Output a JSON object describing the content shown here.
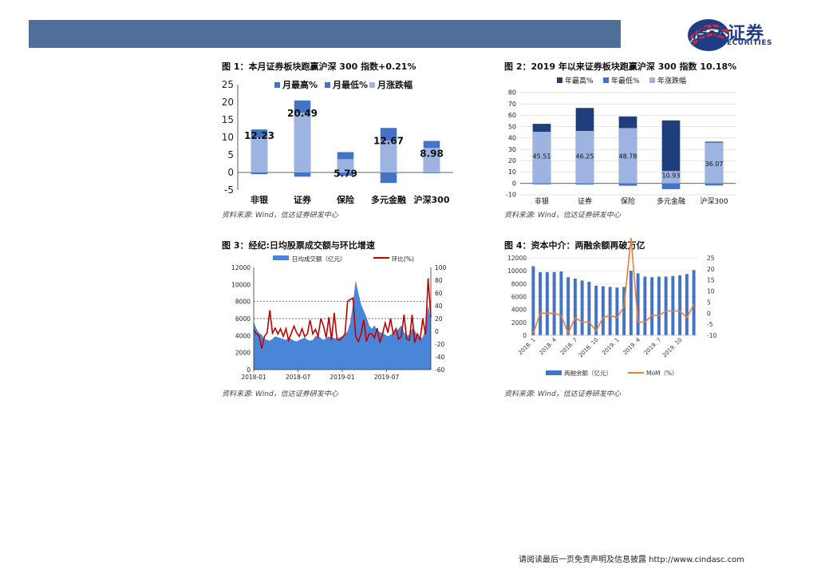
{
  "footer": {
    "disclaimer": "请阅读最后一页免责声明及信息披露 http://www.cindasc.com"
  },
  "logo": {
    "cn": "信达证券",
    "en": "CINDA SECURITIES"
  },
  "source_text": "资料来源: Wind，信达证券研发中心",
  "colors": {
    "header": "#4f6e99",
    "light_blue": "#9db3e0",
    "mid_blue": "#4472c4",
    "dark_blue": "#1f3f7a",
    "red": "#c00000",
    "orange": "#ed7d31"
  },
  "chart1": {
    "title": "图 1：本月证券板块跑赢沪深 300 指数+0.21%"
  },
  "chart2": {
    "title": "图 2：2019 年以来证券板块跑赢沪深 300 指数 10.18%"
  },
  "chart3": {
    "title": "图 3：经纪:日均股票成交额与环比增速"
  },
  "chart4": {
    "title": "图 4：资本中介：两融余额再破万亿"
  },
  "chart_data": [
    {
      "type": "bar",
      "categories": [
        "非银",
        "证券",
        "保险",
        "多元金融",
        "沪深300"
      ],
      "series": [
        {
          "name": "月最高%",
          "values": [
            12.23,
            20.49,
            5.79,
            12.67,
            8.98
          ]
        },
        {
          "name": "月最低%",
          "values": [
            -0.5,
            -1.2,
            -0.9,
            -3.0,
            -0.2
          ]
        },
        {
          "name": "月涨跌幅",
          "values": [
            10.0,
            17.0,
            3.8,
            9.0,
            7.0
          ]
        }
      ],
      "data_labels": [
        "12.23",
        "20.49",
        "5.79",
        "12.67",
        "8.98"
      ],
      "yticks": [
        "25",
        "20",
        "15",
        "10",
        "5",
        "0",
        "-5"
      ],
      "ylim": [
        -5,
        25
      ],
      "legend_position": "top"
    },
    {
      "type": "bar",
      "categories": [
        "非银",
        "证券",
        "保险",
        "多元金融",
        "沪深300"
      ],
      "series": [
        {
          "name": "年最高%",
          "values": [
            52.5,
            66.5,
            59.0,
            55.5,
            36.8
          ]
        },
        {
          "name": "年最低%",
          "values": [
            -0.8,
            -1.0,
            -2.0,
            -5.0,
            -1.8
          ]
        },
        {
          "name": "年涨跌幅",
          "values": [
            45.51,
            46.25,
            48.78,
            10.93,
            36.07
          ]
        }
      ],
      "data_labels": [
        "45.51",
        "46.25",
        "48.78",
        "10.93",
        "36.07"
      ],
      "yticks": [
        "80",
        "70",
        "60",
        "50",
        "40",
        "30",
        "20",
        "10",
        "0",
        "-10"
      ],
      "ylim": [
        -10,
        80
      ],
      "legend_position": "top"
    },
    {
      "type": "area",
      "series": [
        {
          "name": "日均成交额（亿元）",
          "axis": "left",
          "values": [
            5600,
            4800,
            4300,
            4100,
            3600,
            3500,
            3400,
            3600,
            3900,
            3800,
            3700,
            3600,
            3500,
            3700,
            3600,
            3400,
            3300,
            3500,
            3600,
            3800,
            3500,
            3400,
            3500,
            3900,
            4000,
            3700,
            3500,
            3700,
            3900,
            3800,
            3700,
            3600,
            3800,
            3900,
            4200,
            4500,
            5600,
            7800,
            10500,
            9000,
            7700,
            6900,
            6200,
            5200,
            4800,
            5200,
            4600,
            4400,
            4300,
            4100,
            3900,
            4100,
            4300,
            4500,
            4800,
            5200,
            4400,
            4000,
            4100,
            4800,
            4600,
            3900,
            3600,
            3800,
            4900,
            7600,
            5800
          ]
        },
        {
          "name": "环比(%)",
          "axis": "right",
          "values": [
            2,
            -4,
            -7,
            -27,
            -8,
            -2,
            33,
            -3,
            5,
            -4,
            4,
            -8,
            4,
            -14,
            -3,
            8,
            -2,
            -8,
            4,
            -8,
            -4,
            18,
            -4,
            3,
            -8,
            20,
            8,
            -10,
            22,
            -14,
            29,
            -12,
            -14,
            -10,
            -4,
            47,
            50,
            52,
            -8,
            -16,
            -4,
            18,
            -16,
            -4,
            -4,
            -10,
            5,
            -18,
            -4,
            13,
            -2,
            20,
            -4,
            4,
            -12,
            -8,
            26,
            -12,
            -14,
            26,
            -18,
            -4,
            -13,
            20,
            -5,
            83,
            22
          ]
        }
      ],
      "xticks": [
        "2018-01",
        "2018-07",
        "2019-01",
        "2019-07"
      ],
      "yticks_left": [
        "12000",
        "10000",
        "8000",
        "6000",
        "4000",
        "2000",
        "0"
      ],
      "yticks_right": [
        "100",
        "80",
        "60",
        "40",
        "20",
        "0",
        "-20",
        "-40",
        "-60"
      ],
      "ylim_left": [
        0,
        12000
      ],
      "ylim_right": [
        -60,
        100
      ],
      "legend_position": "top"
    },
    {
      "type": "bar",
      "categories": [
        "2018.1",
        "2018.2",
        "2018.3",
        "2018.4",
        "2018.5",
        "2018.6",
        "2018.7",
        "2018.8",
        "2018.9",
        "2018.10",
        "2018.11",
        "2018.12",
        "2019.1",
        "2019.2",
        "2019.3",
        "2019.4",
        "2019.5",
        "2019.6",
        "2019.7",
        "2019.8",
        "2019.9",
        "2019.10",
        "2019.11",
        "2019.12"
      ],
      "xtick_labels": [
        "2018. 1",
        "2018. 4",
        "2018. 7",
        "2018. 10",
        "2019. 1",
        "2019. 4",
        "2019. 7",
        "2019. 10"
      ],
      "series": [
        {
          "name": "两融余额（亿元）",
          "axis": "left",
          "type": "bar",
          "values": [
            10700,
            9800,
            9800,
            9800,
            9900,
            9000,
            8800,
            8500,
            8300,
            7700,
            7600,
            7500,
            7400,
            7500,
            10000,
            9600,
            9100,
            9000,
            9100,
            9100,
            9200,
            9300,
            9500,
            10100
          ]
        },
        {
          "name": "MoM（%）",
          "axis": "right",
          "type": "line",
          "values": [
            -9,
            0,
            0,
            0,
            -1,
            -9,
            -2,
            -4,
            -4,
            -8,
            -2,
            -1,
            -2,
            3,
            34,
            -4,
            -4,
            -1,
            -1,
            1,
            1,
            1,
            -2,
            4
          ]
        }
      ],
      "yticks_left": [
        "12000",
        "10000",
        "8000",
        "6000",
        "4000",
        "2000",
        "0"
      ],
      "yticks_right": [
        "25",
        "20",
        "15",
        "10",
        "5",
        "0",
        "-5",
        "-10"
      ],
      "ylim_left": [
        0,
        12000
      ],
      "ylim_right": [
        -10,
        25
      ],
      "legend_position": "bottom"
    }
  ]
}
